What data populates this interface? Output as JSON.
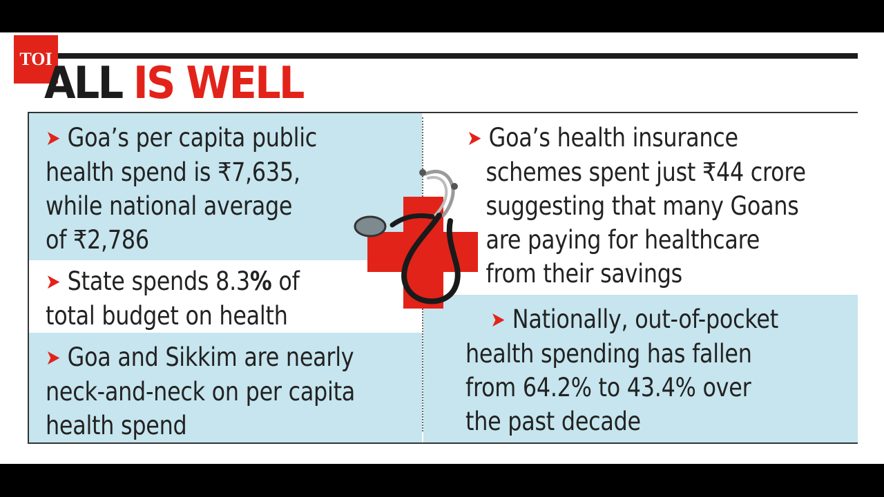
{
  "logo": {
    "text": "TOI"
  },
  "title": {
    "part1": "ALL",
    "part2": "IS WELL"
  },
  "colors": {
    "accent_red": "#e2231a",
    "panel_blue": "#c6e5ee",
    "ink": "#1c1c1c"
  },
  "left_items": [
    {
      "lines": [
        "Goa’s per capita public",
        "health spend is ₹7,635,",
        "while national average",
        "of  ₹2,786"
      ]
    },
    {
      "lines_pre": "State spends 8.3",
      "lines_bold": "%",
      "lines_post": " of",
      "line2": "total budget on health"
    },
    {
      "lines": [
        "Goa and Sikkim are nearly",
        "neck-and-neck on per capita",
        "health spend"
      ]
    }
  ],
  "right_items": [
    {
      "lines": [
        "Goa’s health insurance",
        "schemes spent just ₹44 crore",
        "suggesting that many Goans",
        "are paying for healthcare",
        "from their savings"
      ]
    },
    {
      "lines": [
        "Nationally, out-of-pocket",
        "health spending has fallen",
        "from 64.2% to 43.4% over",
        "the past decade"
      ]
    }
  ],
  "icons": {
    "bullet": "red-arrow-icon",
    "illustration": "stethoscope-red-cross-icon"
  }
}
